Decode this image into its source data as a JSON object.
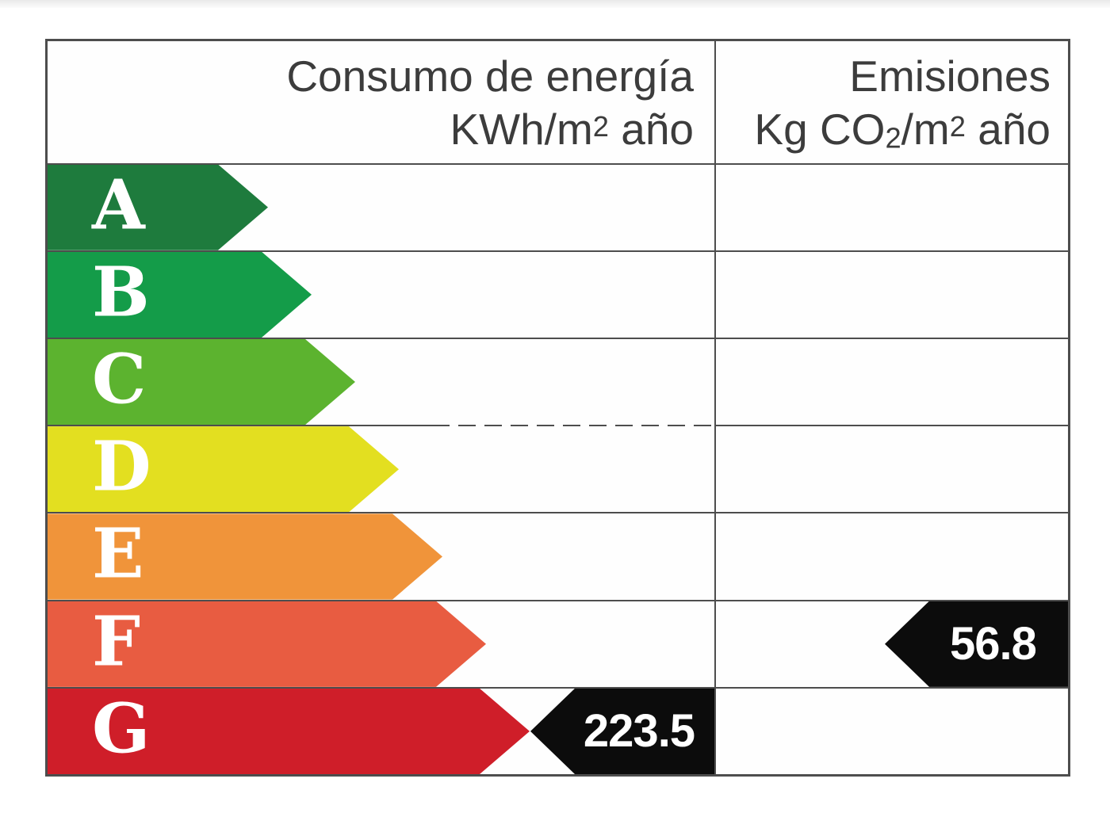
{
  "table": {
    "border_color": "#4d4d4d",
    "header": {
      "energy_col": {
        "line1": "Consumo de energía",
        "unit_pre": "KWh/m",
        "unit_sup": "2",
        "unit_post": " año"
      },
      "emissions_col": {
        "line1": "Emisiones",
        "unit_pre": "Kg CO",
        "unit_sub": "2",
        "unit_mid": "/m",
        "unit_sup": "2",
        "unit_post": " año"
      }
    }
  },
  "chart_data": {
    "type": "bar",
    "title": "",
    "columns": [
      {
        "label": "Consumo de energía KWh/m2 año"
      },
      {
        "label": "Emisiones Kg CO2/m2 año"
      }
    ],
    "categories": [
      "A",
      "B",
      "C",
      "D",
      "E",
      "F",
      "G"
    ],
    "ratings": [
      {
        "letter": "A",
        "color": "#1e7b3d"
      },
      {
        "letter": "B",
        "color": "#149c49"
      },
      {
        "letter": "C",
        "color": "#5cb32f"
      },
      {
        "letter": "D",
        "color": "#e3df20"
      },
      {
        "letter": "E",
        "color": "#f0943a"
      },
      {
        "letter": "F",
        "color": "#e85c41"
      },
      {
        "letter": "G",
        "color": "#cf1e29"
      }
    ],
    "indicators": [
      {
        "column": "Consumo de energía KWh/m2 año",
        "value": "223.5",
        "rating": "G",
        "color": "#0c0c0c"
      },
      {
        "column": "Emisiones Kg CO2/m2 año",
        "value": "56.8",
        "rating": "F",
        "color": "#0c0c0c"
      }
    ],
    "legend_position": "none",
    "grid": true
  }
}
